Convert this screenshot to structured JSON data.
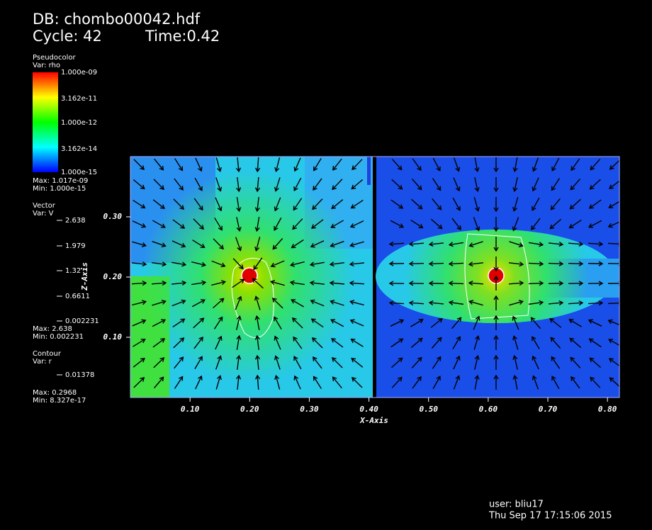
{
  "header": {
    "db": "DB: chombo00042.hdf",
    "cycle": "Cycle: 42",
    "time": "Time:0.42"
  },
  "legends": {
    "pseudocolor": {
      "title": "Pseudocolor",
      "var": "Var: rho",
      "ticks": [
        "1.000e-09",
        "3.162e-11",
        "1.000e-12",
        "3.162e-14",
        "1.000e-15"
      ],
      "max": "Max:  1.017e-09",
      "min": "Min:  1.000e-15"
    },
    "vector": {
      "title": "Vector",
      "var": "Var: V",
      "ticks": [
        "2.638",
        "1.979",
        "1.32",
        "0.6611",
        "0.002231"
      ],
      "max": "Max:  2.638",
      "min": "Min:  0.002231"
    },
    "contour": {
      "title": "Contour",
      "var": "Var: r",
      "ticks": [
        "0.01378"
      ],
      "max": "Max:  0.2968",
      "min": "Min:  8.327e-17"
    }
  },
  "chart_data": {
    "type": "field",
    "xlabel": "X-Axis",
    "ylabel": "Z-Axis",
    "xlim": [
      0,
      0.82
    ],
    "ylim": [
      0,
      0.4
    ],
    "xticks": [
      {
        "value": 0.1,
        "label": "0.10"
      },
      {
        "value": 0.2,
        "label": "0.20"
      },
      {
        "value": 0.3,
        "label": "0.30"
      },
      {
        "value": 0.4,
        "label": "0.40"
      },
      {
        "value": 0.5,
        "label": "0.50"
      },
      {
        "value": 0.6,
        "label": "0.60"
      },
      {
        "value": 0.7,
        "label": "0.70"
      },
      {
        "value": 0.8,
        "label": "0.80"
      }
    ],
    "yticks": [
      {
        "value": 0.1,
        "label": "0.10"
      },
      {
        "value": 0.2,
        "label": "0.20"
      },
      {
        "value": 0.3,
        "label": "0.30"
      }
    ]
  },
  "footer": {
    "user": "user: bliu17",
    "date": "Thu Sep 17 17:15:06 2015"
  }
}
